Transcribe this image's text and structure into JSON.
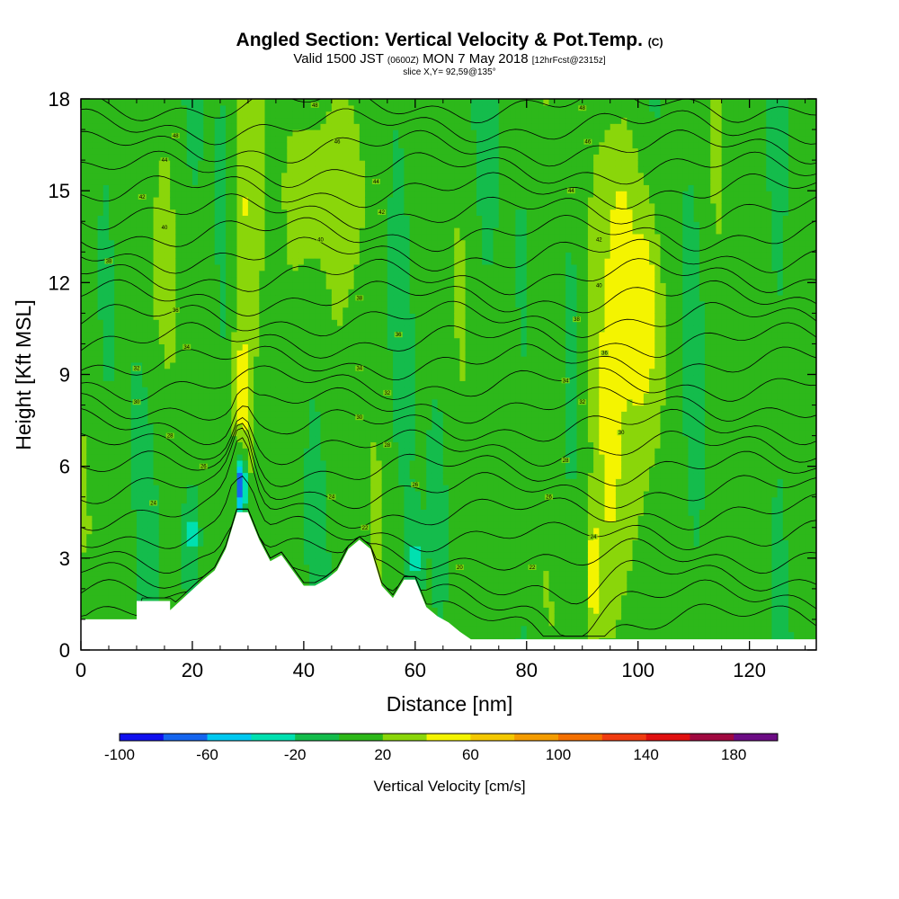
{
  "title": {
    "main": "Angled Section: Vertical Velocity & Pot.Temp.",
    "main_unit": "(C)",
    "valid_prefix": "Valid 1500 JST",
    "valid_utc": "(0600Z)",
    "valid_date": "MON 7 May 2018",
    "forecast": "[12hrFcst@2315z]",
    "slice": "slice X,Y= 92,59@135°"
  },
  "chart_data": {
    "type": "heatmap",
    "xlabel": "Distance [nm]",
    "ylabel": "Height [Kft MSL]",
    "xlim": [
      0,
      132
    ],
    "ylim": [
      0,
      18
    ],
    "x_ticks": [
      0,
      20,
      40,
      60,
      80,
      100,
      120
    ],
    "y_ticks": [
      0,
      3,
      6,
      9,
      12,
      15,
      18
    ],
    "colorbar": {
      "title": "Vertical Velocity [cm/s]",
      "min": -100,
      "max": 200,
      "step": 20,
      "tick_labels": [
        "-100",
        "-60",
        "-20",
        "20",
        "60",
        "100",
        "140",
        "180"
      ],
      "tick_values": [
        -100,
        -60,
        -20,
        20,
        60,
        100,
        140,
        180
      ],
      "colors": [
        "#1010ee",
        "#1565ee",
        "#00c8f0",
        "#00e0b0",
        "#14bc4c",
        "#2db81a",
        "#8ad60a",
        "#f4f400",
        "#f4c800",
        "#f49c00",
        "#f47000",
        "#f03c10",
        "#e01010",
        "#a00840",
        "#6c0c84"
      ]
    },
    "terrain": {
      "x": [
        0,
        10,
        10,
        16,
        16,
        22,
        24,
        26,
        28,
        30,
        32,
        34,
        36,
        38,
        40,
        42,
        44,
        46,
        48,
        50,
        52,
        54,
        56,
        58,
        60,
        62,
        64,
        66,
        68,
        70,
        72,
        132
      ],
      "height": [
        1.0,
        1.0,
        1.6,
        1.6,
        1.3,
        2.3,
        2.6,
        3.3,
        4.5,
        4.5,
        3.6,
        2.9,
        3.1,
        2.6,
        2.1,
        2.1,
        2.3,
        2.6,
        3.3,
        3.6,
        3.3,
        2.1,
        1.7,
        2.3,
        2.3,
        1.4,
        1.1,
        0.9,
        0.6,
        0.35,
        0.35,
        0.35
      ]
    },
    "velocity_features": [
      {
        "x": 29,
        "height": 8.5,
        "x_width": 1.8,
        "height_width": 3.5,
        "value": 50
      },
      {
        "x": 28.8,
        "height": 5.4,
        "x_width": 0.9,
        "height_width": 1.0,
        "value": -90
      },
      {
        "x": 30,
        "height": 14.5,
        "x_width": 2.5,
        "height_width": 4.5,
        "value": 42
      },
      {
        "x": 42,
        "height": 15.0,
        "x_width": 7.0,
        "height_width": 4.0,
        "value": 26
      },
      {
        "x": 48,
        "height": 15.0,
        "x_width": 3.5,
        "height_width": 3.5,
        "value": 30
      },
      {
        "x": 95,
        "height": 8.0,
        "x_width": 3.5,
        "height_width": 9.0,
        "value": 50
      },
      {
        "x": 101,
        "height": 11.0,
        "x_width": 3.5,
        "height_width": 4.0,
        "value": 55
      },
      {
        "x": 97,
        "height": 13.0,
        "x_width": 1.5,
        "height_width": 2.0,
        "value": 62
      },
      {
        "x": 92,
        "height": 2.5,
        "x_width": 1.0,
        "height_width": 1.8,
        "value": 62
      },
      {
        "x": 88,
        "height": 9.5,
        "x_width": 0.8,
        "height_width": 2.5,
        "value": -28
      },
      {
        "x": 20,
        "height": 3.8,
        "x_width": 1.5,
        "height_width": 1.5,
        "value": -25
      },
      {
        "x": 60,
        "height": 3.0,
        "x_width": 1.5,
        "height_width": 1.5,
        "value": -25
      },
      {
        "x": 14,
        "height": 12.5,
        "x_width": 3.0,
        "height_width": 4.0,
        "value": 22
      },
      {
        "x": 130,
        "height": 14.0,
        "x_width": 3.0,
        "height_width": 5.0,
        "value": 4
      }
    ],
    "potential_temperature": {
      "base_label": 20,
      "label_step": 2,
      "level_count": 25,
      "labels": [
        {
          "text": "48",
          "x": 42,
          "height": 17.8
        },
        {
          "text": "48",
          "x": 17,
          "height": 16.8
        },
        {
          "text": "46",
          "x": 46,
          "height": 16.6
        },
        {
          "text": "44",
          "x": 15,
          "height": 16.0
        },
        {
          "text": "44",
          "x": 53,
          "height": 15.3
        },
        {
          "text": "42",
          "x": 11,
          "height": 14.8
        },
        {
          "text": "42",
          "x": 54,
          "height": 14.3
        },
        {
          "text": "40",
          "x": 15,
          "height": 13.8
        },
        {
          "text": "40",
          "x": 43,
          "height": 13.4
        },
        {
          "text": "38",
          "x": 5,
          "height": 12.7
        },
        {
          "text": "38",
          "x": 50,
          "height": 11.5
        },
        {
          "text": "36",
          "x": 17,
          "height": 11.1
        },
        {
          "text": "36",
          "x": 57,
          "height": 10.3
        },
        {
          "text": "34",
          "x": 19,
          "height": 9.9
        },
        {
          "text": "34",
          "x": 50,
          "height": 9.2
        },
        {
          "text": "32",
          "x": 10,
          "height": 9.2
        },
        {
          "text": "32",
          "x": 55,
          "height": 8.4
        },
        {
          "text": "30",
          "x": 10,
          "height": 8.1
        },
        {
          "text": "30",
          "x": 50,
          "height": 7.6
        },
        {
          "text": "28",
          "x": 16,
          "height": 7.0
        },
        {
          "text": "28",
          "x": 55,
          "height": 6.7
        },
        {
          "text": "26",
          "x": 22,
          "height": 6.0
        },
        {
          "text": "26",
          "x": 60,
          "height": 5.4
        },
        {
          "text": "24",
          "x": 13,
          "height": 4.8
        },
        {
          "text": "24",
          "x": 45,
          "height": 5.0
        },
        {
          "text": "22",
          "x": 51,
          "height": 4.0
        },
        {
          "text": "20",
          "x": 68,
          "height": 2.7
        },
        {
          "text": "48",
          "x": 90,
          "height": 17.7
        },
        {
          "text": "46",
          "x": 91,
          "height": 16.6
        },
        {
          "text": "44",
          "x": 88,
          "height": 15.0
        },
        {
          "text": "42",
          "x": 93,
          "height": 13.4
        },
        {
          "text": "40",
          "x": 93,
          "height": 11.9
        },
        {
          "text": "38",
          "x": 89,
          "height": 10.8
        },
        {
          "text": "36",
          "x": 94,
          "height": 9.7
        },
        {
          "text": "34",
          "x": 87,
          "height": 8.8
        },
        {
          "text": "32",
          "x": 90,
          "height": 8.1
        },
        {
          "text": "30",
          "x": 97,
          "height": 7.1
        },
        {
          "text": "28",
          "x": 87,
          "height": 6.2
        },
        {
          "text": "26",
          "x": 84,
          "height": 5.0
        },
        {
          "text": "24",
          "x": 92,
          "height": 3.7
        },
        {
          "text": "22",
          "x": 81,
          "height": 2.7
        }
      ]
    }
  }
}
